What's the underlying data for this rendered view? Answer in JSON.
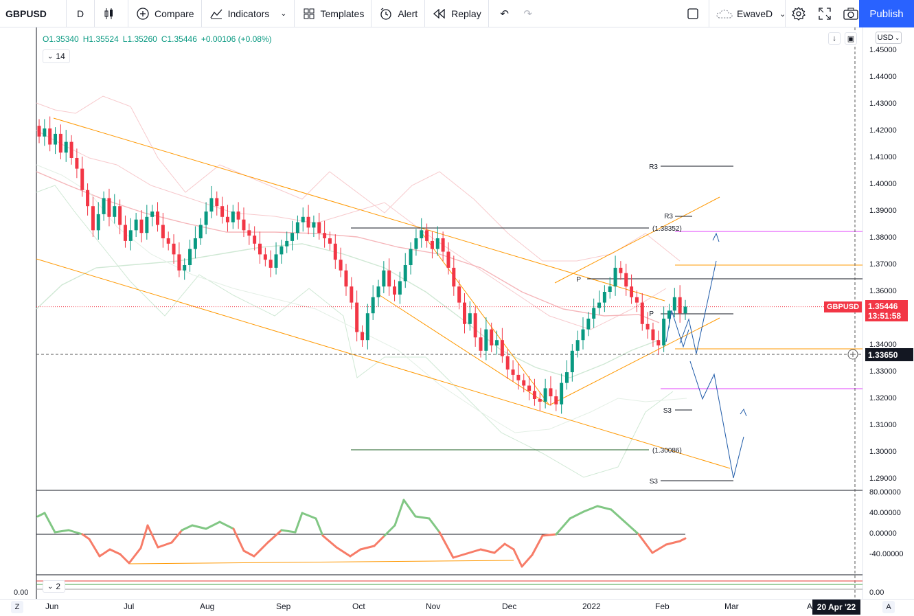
{
  "toolbar": {
    "symbol": "GBPUSD",
    "interval": "D",
    "compare_label": "Compare",
    "indicators_label": "Indicators",
    "templates_label": "Templates",
    "alert_label": "Alert",
    "replay_label": "Replay",
    "layout_name": "EwaveD",
    "publish_label": "Publish",
    "icons": [
      "candles-icon",
      "plus-circle-icon",
      "indicators-icon",
      "templates-icon",
      "alert-icon",
      "replay-icon",
      "undo-icon",
      "redo-icon",
      "square-icon",
      "cloud-icon",
      "gear-icon",
      "fullscreen-icon",
      "camera-icon"
    ]
  },
  "legend": {
    "o": "O1.35340",
    "h": "H1.35524",
    "l": "L1.35260",
    "c": "C1.35446",
    "change": "+0.00106 (+0.08%)",
    "study_value": "14",
    "sub_study_value": "2"
  },
  "right_axis": {
    "currency": "USD",
    "ticks": [
      "1.45000",
      "1.44000",
      "1.43000",
      "1.42000",
      "1.41000",
      "1.40000",
      "1.39000",
      "1.38000",
      "1.37000",
      "1.36000",
      "1.34000",
      "1.33000",
      "1.32000",
      "1.31000",
      "1.30000",
      "1.29000"
    ],
    "osc_ticks": [
      "80.00000",
      "40.00000",
      "0.00000",
      "-40.00000"
    ],
    "bottom_tick": "0.00",
    "left_bottom_tick": "0.00",
    "symbol_badge": "GBPUSD",
    "last_price": "1.35446",
    "countdown": "13:51:58",
    "crosshair_price": "1.33650"
  },
  "time_axis": {
    "labels": [
      "Jun",
      "Jul",
      "Aug",
      "Sep",
      "Oct",
      "Nov",
      "Dec",
      "2022",
      "Feb",
      "Mar",
      "Apr"
    ],
    "crosshair_date": "20 Apr '22",
    "left_toggle": "Z",
    "right_toggle": "A"
  },
  "annotations": {
    "r3_upper": "R3",
    "r3_lower": "R3",
    "level_high": "(1.38352)",
    "level_low": "(1.30086)",
    "p_upper": "P",
    "p_lower": "P",
    "s3_upper": "S3",
    "s3_lower": "S3"
  },
  "colors": {
    "up": "#089981",
    "down": "#f23645",
    "accent": "#2962ff",
    "trendline": "#ff9800",
    "projection": "#1e5aa8",
    "osc_up": "#81c784",
    "osc_down": "#f77c68"
  },
  "chart_data": {
    "type": "candlestick",
    "symbol": "GBPUSD",
    "timeframe": "D",
    "y_range": [
      1.285,
      1.455
    ],
    "x_labels": [
      "Jun",
      "Jul",
      "Aug",
      "Sep",
      "Oct",
      "Nov",
      "Dec",
      "2022",
      "Feb",
      "Mar",
      "Apr"
    ],
    "last": {
      "open": 1.3534,
      "high": 1.35524,
      "low": 1.3526,
      "close": 1.35446
    },
    "horizontal_levels": [
      {
        "label": "R3",
        "value": 1.407
      },
      {
        "label": "R3",
        "value": 1.388
      },
      {
        "label": "(1.38352)",
        "value": 1.38352
      },
      {
        "label": "P",
        "value": 1.3645
      },
      {
        "label": "P",
        "value": 1.351
      },
      {
        "label": "S3",
        "value": 1.3155
      },
      {
        "label": "(1.30086)",
        "value": 1.30086
      },
      {
        "label": "S3",
        "value": 1.289
      }
    ],
    "closes": [
      1.418,
      1.421,
      1.415,
      1.419,
      1.412,
      1.416,
      1.41,
      1.406,
      1.398,
      1.392,
      1.383,
      1.389,
      1.395,
      1.388,
      1.392,
      1.385,
      1.379,
      1.383,
      1.387,
      1.382,
      1.388,
      1.39,
      1.385,
      1.38,
      1.378,
      1.374,
      1.368,
      1.37,
      1.376,
      1.38,
      1.385,
      1.39,
      1.395,
      1.392,
      1.388,
      1.386,
      1.39,
      1.387,
      1.383,
      1.381,
      1.378,
      1.374,
      1.372,
      1.369,
      1.374,
      1.377,
      1.379,
      1.382,
      1.386,
      1.388,
      1.384,
      1.386,
      1.382,
      1.38,
      1.378,
      1.372,
      1.368,
      1.362,
      1.356,
      1.345,
      1.342,
      1.352,
      1.358,
      1.362,
      1.368,
      1.362,
      1.359,
      1.364,
      1.37,
      1.376,
      1.38,
      1.383,
      1.379,
      1.376,
      1.38,
      1.375,
      1.369,
      1.362,
      1.356,
      1.348,
      1.352,
      1.343,
      1.338,
      1.346,
      1.34,
      1.342,
      1.336,
      1.331,
      1.329,
      1.327,
      1.325,
      1.323,
      1.32,
      1.319,
      1.324,
      1.321,
      1.318,
      1.326,
      1.33,
      1.338,
      1.342,
      1.346,
      1.35,
      1.354,
      1.356,
      1.36,
      1.362,
      1.369,
      1.367,
      1.362,
      1.358,
      1.356,
      1.348,
      1.346,
      1.342,
      1.34,
      1.35,
      1.353,
      1.358,
      1.352,
      1.3545
    ]
  }
}
